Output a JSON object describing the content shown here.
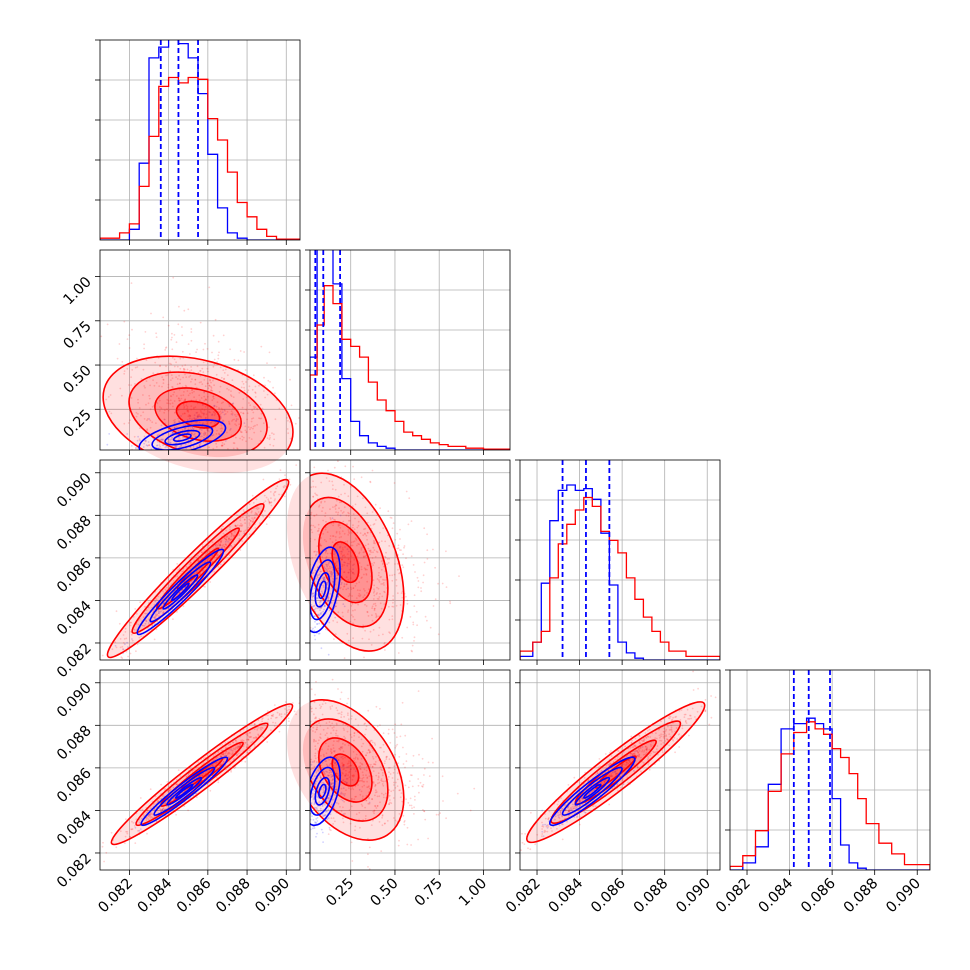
{
  "chart_data": {
    "type": "corner",
    "dimensions": 4,
    "colors": {
      "series_a": "#ff0000",
      "series_b": "#0000ff"
    },
    "grid": true,
    "axes": {
      "p1": {
        "range": [
          0.0805,
          0.0907
        ],
        "ticks": [
          0.082,
          0.084,
          0.086,
          0.088,
          0.09
        ],
        "tick_labels": [
          "0.082",
          "0.084",
          "0.086",
          "0.088",
          "0.090"
        ]
      },
      "p2": {
        "range": [
          0.02,
          1.15
        ],
        "ticks": [
          0.25,
          0.5,
          0.75,
          1.0
        ],
        "tick_labels": [
          "0.25",
          "0.50",
          "0.75",
          "1.00"
        ]
      },
      "p3": {
        "range": [
          0.0812,
          0.0906
        ],
        "ticks": [
          0.082,
          0.084,
          0.086,
          0.088,
          0.09
        ],
        "tick_labels": [
          "0.082",
          "0.084",
          "0.086",
          "0.088",
          "0.090"
        ]
      },
      "p4": {
        "range": [
          0.0812,
          0.0906
        ],
        "ticks": [
          0.082,
          0.084,
          0.086,
          0.088,
          0.09
        ],
        "tick_labels": [
          "0.082",
          "0.084",
          "0.086",
          "0.088",
          "0.090"
        ]
      }
    },
    "histograms": [
      {
        "dim": "p1",
        "bins": [
          0.0805,
          0.0815,
          0.082,
          0.0825,
          0.083,
          0.0835,
          0.084,
          0.0845,
          0.085,
          0.0855,
          0.086,
          0.0865,
          0.087,
          0.0875,
          0.088,
          0.0885,
          0.089,
          0.0895,
          0.0907
        ],
        "red": [
          0.01,
          0.04,
          0.09,
          0.3,
          0.58,
          0.86,
          0.91,
          0.88,
          0.91,
          0.9,
          0.68,
          0.56,
          0.38,
          0.21,
          0.13,
          0.06,
          0.02,
          0.005
        ],
        "blue": [
          0.0,
          0.0,
          0.06,
          0.43,
          1.02,
          1.08,
          1.15,
          1.1,
          1.02,
          0.82,
          0.48,
          0.18,
          0.04,
          0.01,
          0.0,
          0.0,
          0.0,
          0.0
        ],
        "quantiles": [
          0.0836,
          0.0845,
          0.0855
        ]
      },
      {
        "dim": "p2",
        "bins": [
          0.02,
          0.06,
          0.1,
          0.15,
          0.2,
          0.25,
          0.3,
          0.35,
          0.4,
          0.45,
          0.5,
          0.55,
          0.6,
          0.65,
          0.7,
          0.75,
          0.8,
          0.9,
          1.0,
          1.15
        ],
        "red": [
          0.42,
          0.7,
          0.92,
          0.82,
          0.62,
          0.58,
          0.52,
          0.38,
          0.28,
          0.22,
          0.16,
          0.1,
          0.08,
          0.06,
          0.04,
          0.03,
          0.02,
          0.01,
          0.005
        ],
        "blue": [
          0.52,
          1.3,
          1.26,
          0.93,
          0.4,
          0.16,
          0.08,
          0.04,
          0.02,
          0.01,
          0.0,
          0.0,
          0.0,
          0.0,
          0.0,
          0.0,
          0.0,
          0.0,
          0.0
        ],
        "quantiles": [
          0.05,
          0.095,
          0.19
        ]
      },
      {
        "dim": "p3",
        "bins": [
          0.0812,
          0.0818,
          0.0822,
          0.0826,
          0.083,
          0.0834,
          0.0838,
          0.0842,
          0.0846,
          0.085,
          0.0854,
          0.0858,
          0.0862,
          0.0866,
          0.087,
          0.0874,
          0.0878,
          0.0882,
          0.089,
          0.0906
        ],
        "red": [
          0.05,
          0.1,
          0.16,
          0.46,
          0.65,
          0.76,
          0.84,
          0.91,
          0.86,
          0.72,
          0.67,
          0.6,
          0.46,
          0.34,
          0.24,
          0.16,
          0.1,
          0.05,
          0.02
        ],
        "blue": [
          0.02,
          0.1,
          0.43,
          0.78,
          0.95,
          0.98,
          0.95,
          0.96,
          0.9,
          0.71,
          0.42,
          0.1,
          0.04,
          0.01,
          0.0,
          0.0,
          0.0,
          0.0,
          0.0
        ],
        "quantiles": [
          0.0832,
          0.0843,
          0.0854
        ]
      },
      {
        "dim": "p4",
        "bins": [
          0.0812,
          0.0818,
          0.0824,
          0.083,
          0.0836,
          0.0842,
          0.0848,
          0.0852,
          0.0856,
          0.086,
          0.0864,
          0.0868,
          0.0872,
          0.0876,
          0.0882,
          0.0888,
          0.0894,
          0.0906
        ],
        "red": [
          0.02,
          0.08,
          0.22,
          0.44,
          0.65,
          0.77,
          0.83,
          0.79,
          0.76,
          0.68,
          0.63,
          0.54,
          0.4,
          0.26,
          0.15,
          0.09,
          0.03
        ],
        "blue": [
          0.0,
          0.04,
          0.13,
          0.48,
          0.79,
          0.82,
          0.85,
          0.82,
          0.79,
          0.4,
          0.14,
          0.04,
          0.01,
          0.0,
          0.0,
          0.0,
          0.0
        ],
        "quantiles": [
          0.0842,
          0.0849,
          0.0859
        ]
      }
    ],
    "pairs": [
      {
        "x": "p1",
        "y": "p2",
        "red": {
          "mean": [
            0.0855,
            0.22
          ],
          "sd": [
            0.0022,
            0.15
          ],
          "rho": -0.3
        },
        "blue": {
          "mean": [
            0.0847,
            0.09
          ],
          "sd": [
            0.0011,
            0.05
          ],
          "rho": 0.55
        }
      },
      {
        "x": "p1",
        "y": "p3",
        "red": {
          "mean": [
            0.0855,
            0.0855
          ],
          "sd": [
            0.0021,
            0.0019
          ],
          "rho": 0.97
        },
        "blue": {
          "mean": [
            0.0846,
            0.0844
          ],
          "sd": [
            0.0011,
            0.001
          ],
          "rho": 0.96
        }
      },
      {
        "x": "p2",
        "y": "p3",
        "red": {
          "mean": [
            0.22,
            0.0858
          ],
          "sd": [
            0.15,
            0.0019
          ],
          "rho": -0.4
        },
        "blue": {
          "mean": [
            0.09,
            0.0845
          ],
          "sd": [
            0.05,
            0.001
          ],
          "rho": 0.45
        }
      },
      {
        "x": "p1",
        "y": "p4",
        "red": {
          "mean": [
            0.0857,
            0.0857
          ],
          "sd": [
            0.0021,
            0.0015
          ],
          "rho": 0.97
        },
        "blue": {
          "mean": [
            0.0848,
            0.0849
          ],
          "sd": [
            0.0011,
            0.0008
          ],
          "rho": 0.96
        }
      },
      {
        "x": "p2",
        "y": "p4",
        "red": {
          "mean": [
            0.22,
            0.0859
          ],
          "sd": [
            0.15,
            0.0015
          ],
          "rho": -0.4
        },
        "blue": {
          "mean": [
            0.09,
            0.0849
          ],
          "sd": [
            0.05,
            0.0008
          ],
          "rho": 0.45
        }
      },
      {
        "x": "p3",
        "y": "p4",
        "red": {
          "mean": [
            0.0857,
            0.0858
          ],
          "sd": [
            0.0019,
            0.0015
          ],
          "rho": 0.95
        },
        "blue": {
          "mean": [
            0.0846,
            0.0849
          ],
          "sd": [
            0.001,
            0.0008
          ],
          "rho": 0.94
        }
      }
    ]
  }
}
